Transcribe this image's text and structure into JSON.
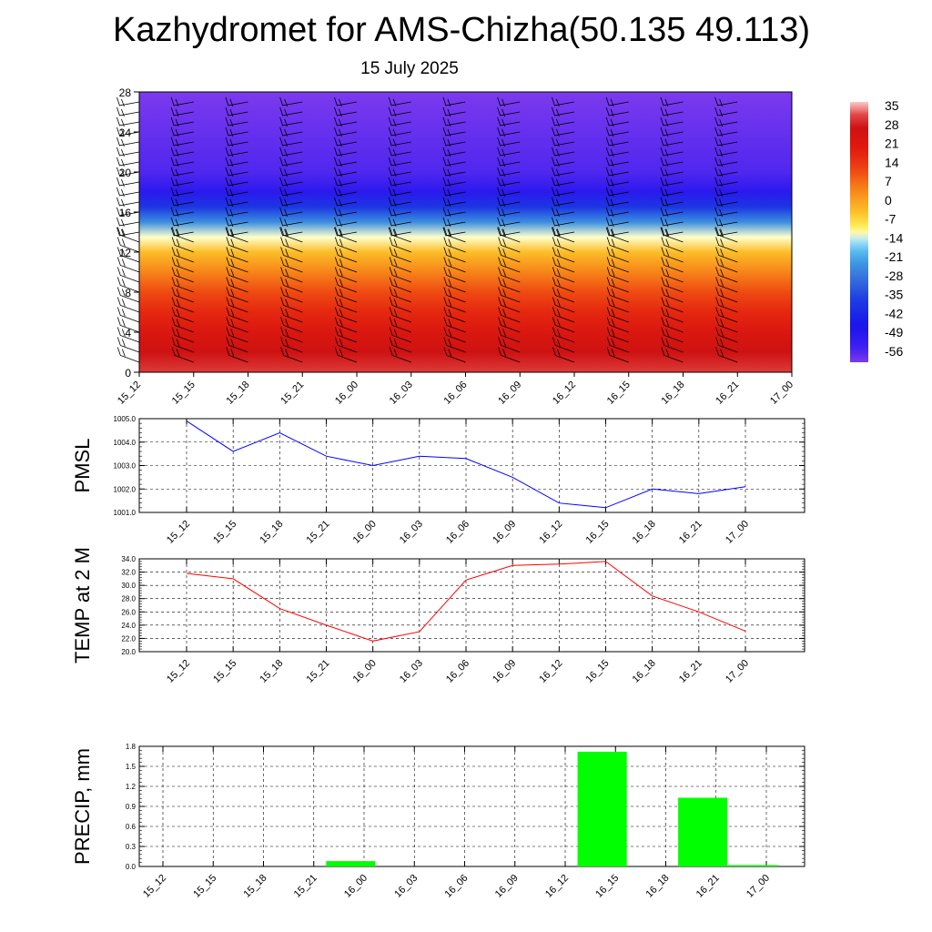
{
  "title": "Kazhydromet for AMS-Chizha(50.135 49.113)",
  "subtitle": "15 July 2025",
  "colors": {
    "pmsl_line": "#0000ff",
    "temp_line": "#ff0000",
    "precip_bar": "#00ff00",
    "grid": "#000000"
  },
  "chart_data": [
    {
      "type": "heatmap",
      "name": "vertical-profile",
      "x": [
        "15_12",
        "15_15",
        "15_18",
        "15_21",
        "16_00",
        "16_03",
        "16_06",
        "16_09",
        "16_12",
        "16_15",
        "16_18",
        "16_21",
        "17_00"
      ],
      "yticks": [
        "0",
        "4",
        "8",
        "12",
        "16",
        "20",
        "24",
        "28"
      ],
      "ylim": [
        0,
        28
      ],
      "colorbar": {
        "labels": [
          "35",
          "28",
          "21",
          "14",
          "7",
          "0",
          "-7",
          "-14",
          "-21",
          "-28",
          "-35",
          "-42",
          "-49",
          "-56"
        ],
        "range": [
          -60,
          38
        ]
      },
      "profile": [
        [
          0,
          32
        ],
        [
          2,
          28
        ],
        [
          4,
          23
        ],
        [
          6,
          18
        ],
        [
          8,
          12
        ],
        [
          10,
          5
        ],
        [
          12,
          -3
        ],
        [
          13.5,
          -12
        ],
        [
          15,
          -24
        ],
        [
          16.5,
          -38
        ],
        [
          18,
          -50
        ],
        [
          20,
          -56
        ],
        [
          24,
          -58
        ],
        [
          28,
          -60
        ]
      ],
      "wind_barbs": true
    },
    {
      "type": "line",
      "name": "pmsl",
      "ylabel": "PMSL",
      "x": [
        "15_12",
        "15_15",
        "15_18",
        "15_21",
        "16_00",
        "16_03",
        "16_06",
        "16_09",
        "16_12",
        "16_15",
        "16_18",
        "16_21",
        "17_00"
      ],
      "values": [
        1004.9,
        1003.6,
        1004.4,
        1003.4,
        1003.0,
        1003.4,
        1003.3,
        1002.5,
        1001.4,
        1001.2,
        1002.0,
        1001.8,
        1002.1
      ],
      "ylim": [
        1001.0,
        1005.0
      ],
      "yticks": [
        "1001.0",
        "1002.0",
        "1003.0",
        "1004.0",
        "1005.0"
      ],
      "grid": true
    },
    {
      "type": "line",
      "name": "temp",
      "ylabel": "TEMP at 2 M",
      "x": [
        "15_12",
        "15_15",
        "15_18",
        "15_21",
        "16_00",
        "16_03",
        "16_06",
        "16_09",
        "16_12",
        "16_15",
        "16_18",
        "16_21",
        "17_00"
      ],
      "values": [
        31.8,
        31.0,
        26.5,
        24.0,
        21.6,
        23.0,
        30.8,
        33.0,
        33.2,
        33.6,
        28.4,
        26.0,
        23.1
      ],
      "ylim": [
        20.0,
        34.0
      ],
      "yticks": [
        "20.0",
        "22.0",
        "24.0",
        "26.0",
        "28.0",
        "30.0",
        "32.0",
        "34.0"
      ],
      "grid": true
    },
    {
      "type": "bar",
      "name": "precip",
      "ylabel": "PRECIP, mm",
      "x": [
        "15_12",
        "15_15",
        "15_18",
        "15_21",
        "16_00",
        "16_03",
        "16_06",
        "16_09",
        "16_12",
        "16_15",
        "16_18",
        "16_21",
        "17_00"
      ],
      "values": [
        0,
        0,
        0,
        0.08,
        0,
        0,
        0,
        0,
        1.72,
        0,
        1.03,
        0.02,
        0
      ],
      "ylim": [
        0.0,
        1.8
      ],
      "yticks": [
        "0.0",
        "0.3",
        "0.6",
        "0.9",
        "1.2",
        "1.5",
        "1.8"
      ],
      "grid": true
    }
  ]
}
